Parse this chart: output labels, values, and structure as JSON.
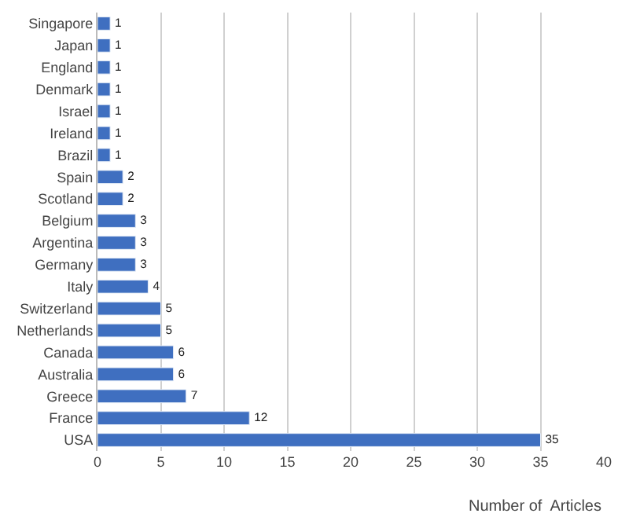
{
  "chart_data": {
    "type": "bar",
    "orientation": "horizontal",
    "xlabel": "Number of  Articles",
    "categories": [
      "Singapore",
      "Japan",
      "England",
      "Denmark",
      "Israel",
      "Ireland",
      "Brazil",
      "Spain",
      "Scotland",
      "Belgium",
      "Argentina",
      "Germany",
      "Italy",
      "Switzerland",
      "Netherlands",
      "Canada",
      "Australia",
      "Greece",
      "France",
      "USA"
    ],
    "values": [
      1,
      1,
      1,
      1,
      1,
      1,
      1,
      2,
      2,
      3,
      3,
      3,
      4,
      5,
      5,
      6,
      6,
      7,
      12,
      35
    ],
    "color": "#3f6fc0",
    "xlim": [
      0,
      40
    ],
    "xticks": [
      0,
      5,
      10,
      15,
      20,
      25,
      30,
      35,
      40
    ],
    "grid": "x",
    "data_labels": true
  }
}
